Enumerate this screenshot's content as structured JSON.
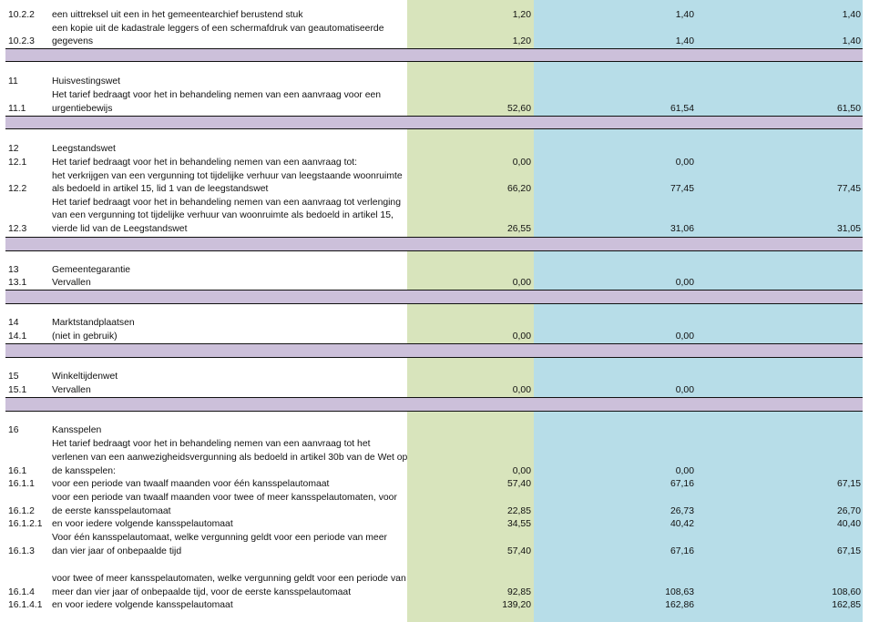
{
  "colors": {
    "green_column": "#d8e4bc",
    "blue_column": "#b7dde8",
    "separator_band": "#ccc0da"
  },
  "rows": [
    {
      "num": "10.2.2",
      "desc": "een uittreksel uit een in het gemeentearchief berustend stuk",
      "v1": "1,20",
      "v2": "1,40",
      "v3": "1,40"
    },
    {
      "num": "",
      "desc": "een kopie uit de kadastrale leggers of een schermafdruk van geautomatiseerde",
      "v1": "",
      "v2": "",
      "v3": ""
    },
    {
      "num": "10.2.3",
      "desc": "gegevens",
      "v1": "1,20",
      "v2": "1,40",
      "v3": "1,40"
    },
    {
      "num": "11",
      "desc": "Huisvestingswet",
      "v1": "",
      "v2": "",
      "v3": ""
    },
    {
      "num": "",
      "desc": "Het tarief bedraagt voor het in behandeling nemen van een aanvraag voor een",
      "v1": "",
      "v2": "",
      "v3": ""
    },
    {
      "num": "11.1",
      "desc": "urgentiebewijs",
      "v1": "52,60",
      "v2": "61,54",
      "v3": "61,50"
    },
    {
      "num": "12",
      "desc": "Leegstandswet",
      "v1": "",
      "v2": "",
      "v3": ""
    },
    {
      "num": "12.1",
      "desc": "Het tarief bedraagt voor het in behandeling nemen van een aanvraag tot:",
      "v1": "0,00",
      "v2": "0,00",
      "v3": ""
    },
    {
      "num": "",
      "desc": "het verkrijgen van een vergunning tot tijdelijke verhuur van leegstaande woonruimte",
      "v1": "",
      "v2": "",
      "v3": ""
    },
    {
      "num": "12.2",
      "desc": "als bedoeld in artikel 15, lid 1 van de leegstandswet",
      "v1": "66,20",
      "v2": "77,45",
      "v3": "77,45"
    },
    {
      "num": "",
      "desc": "Het tarief bedraagt voor het in behandeling nemen van een aanvraag tot verlenging",
      "v1": "",
      "v2": "",
      "v3": ""
    },
    {
      "num": "",
      "desc": "van een vergunning tot tijdelijke verhuur van woonruimte als bedoeld in artikel 15,",
      "v1": "",
      "v2": "",
      "v3": ""
    },
    {
      "num": "12.3",
      "desc": "vierde lid van de Leegstandswet",
      "v1": "26,55",
      "v2": "31,06",
      "v3": "31,05"
    },
    {
      "num": "13",
      "desc": "Gemeentegarantie",
      "v1": "",
      "v2": "",
      "v3": ""
    },
    {
      "num": "13.1",
      "desc": "Vervallen",
      "v1": "0,00",
      "v2": "0,00",
      "v3": ""
    },
    {
      "num": "14",
      "desc": "Marktstandplaatsen",
      "v1": "",
      "v2": "",
      "v3": ""
    },
    {
      "num": "14.1",
      "desc": "(niet in gebruik)",
      "v1": "0,00",
      "v2": "0,00",
      "v3": ""
    },
    {
      "num": "15",
      "desc": "Winkeltijdenwet",
      "v1": "",
      "v2": "",
      "v3": ""
    },
    {
      "num": "15.1",
      "desc": "Vervallen",
      "v1": "0,00",
      "v2": "0,00",
      "v3": ""
    },
    {
      "num": "16",
      "desc": "Kansspelen",
      "v1": "",
      "v2": "",
      "v3": ""
    },
    {
      "num": "",
      "desc": "Het tarief bedraagt voor het in behandeling nemen van een aanvraag tot het",
      "v1": "",
      "v2": "",
      "v3": ""
    },
    {
      "num": "",
      "desc": "verlenen van een aanwezigheidsvergunning als bedoeld in artikel 30b van de Wet op",
      "v1": "",
      "v2": "",
      "v3": ""
    },
    {
      "num": "16.1",
      "desc": "de kansspelen:",
      "v1": "0,00",
      "v2": "0,00",
      "v3": ""
    },
    {
      "num": "16.1.1",
      "desc": "voor een periode van twaalf maanden voor één kansspelautomaat",
      "v1": "57,40",
      "v2": "67,16",
      "v3": "67,15"
    },
    {
      "num": "",
      "desc": "voor een periode van twaalf maanden voor twee of meer kansspelautomaten, voor",
      "v1": "",
      "v2": "",
      "v3": ""
    },
    {
      "num": "16.1.2",
      "desc": "de eerste kansspelautomaat",
      "v1": "22,85",
      "v2": "26,73",
      "v3": "26,70"
    },
    {
      "num": "16.1.2.1",
      "desc": "en voor iedere volgende kansspelautomaat",
      "v1": "34,55",
      "v2": "40,42",
      "v3": "40,40"
    },
    {
      "num": "",
      "desc": "Voor één kansspelautomaat, welke vergunning geldt voor een periode van meer",
      "v1": "",
      "v2": "",
      "v3": ""
    },
    {
      "num": "16.1.3",
      "desc": "dan vier jaar of onbepaalde tijd",
      "v1": "57,40",
      "v2": "67,16",
      "v3": "67,15"
    },
    {
      "num": "",
      "desc": "voor twee of meer kansspelautomaten, welke vergunning geldt voor een periode van",
      "v1": "",
      "v2": "",
      "v3": ""
    },
    {
      "num": "16.1.4",
      "desc": "meer dan vier jaar of onbepaalde tijd, voor de eerste kansspelautomaat",
      "v1": "92,85",
      "v2": "108,63",
      "v3": "108,60"
    },
    {
      "num": "16.1.4.1",
      "desc": "en voor iedere volgende kansspelautomaat",
      "v1": "139,20",
      "v2": "162,86",
      "v3": "162,85"
    }
  ]
}
